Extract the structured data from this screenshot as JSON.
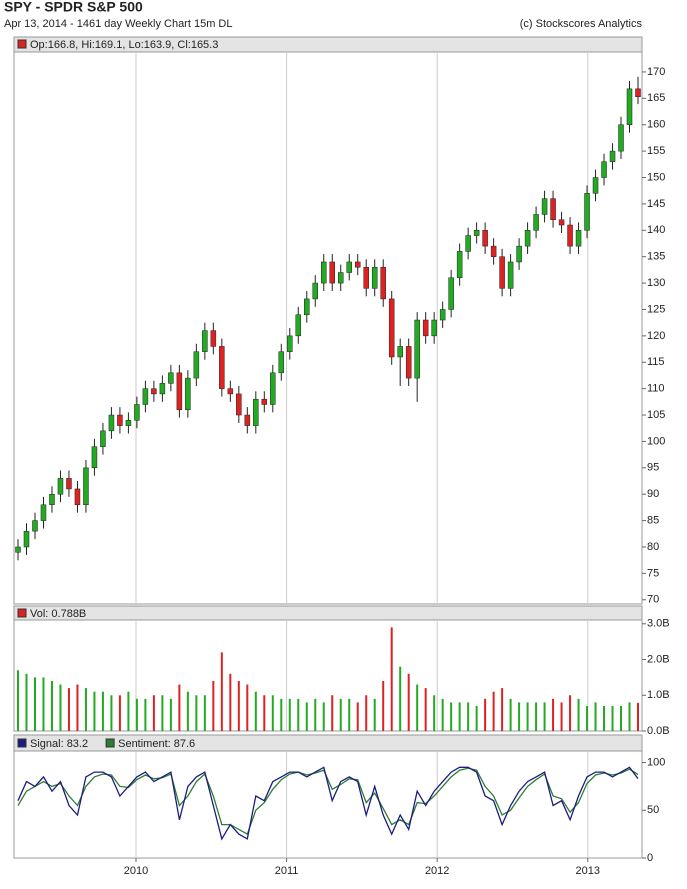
{
  "header": {
    "title": "SPY - SPDR S&P 500",
    "subtitle": "Apr 13, 2014 - 1461 day  Weekly Chart 15m DL",
    "credit": "(c) Stockscores Analytics"
  },
  "chart_data": [
    {
      "type": "candlestick",
      "label": "Op:166.8, Hi:169.1, Lo:163.9, Cl:165.3",
      "label_color": "#dd2222",
      "up_color": "#22aa22",
      "down_color": "#dd2222",
      "open": [
        79,
        80,
        83,
        85,
        88,
        90,
        93,
        91,
        88,
        95,
        99,
        102,
        105,
        103,
        104,
        107,
        110,
        109,
        111,
        113,
        106,
        112,
        117,
        121,
        118,
        110,
        109,
        105,
        103,
        108,
        107,
        113,
        117,
        120,
        124,
        127,
        130,
        134,
        130,
        132,
        134,
        133,
        129,
        133,
        127,
        116,
        118,
        112,
        123,
        120,
        123,
        125,
        131,
        136,
        139,
        140,
        137,
        135,
        129,
        134,
        137,
        140,
        143,
        146,
        142,
        141,
        137,
        140,
        147,
        150,
        153,
        155,
        160,
        166.8
      ],
      "high": [
        81.5,
        84.5,
        86.5,
        89.5,
        91.5,
        94.5,
        94.5,
        92.5,
        96.5,
        100.5,
        103.5,
        106.5,
        106.5,
        105.5,
        108.5,
        111.5,
        111.5,
        112.5,
        114.5,
        114.5,
        113.5,
        118.5,
        122.5,
        122.5,
        119.5,
        111.5,
        110.5,
        106.5,
        109.5,
        109.5,
        114.5,
        118.5,
        121.5,
        125.5,
        128.5,
        131.5,
        135.5,
        135.5,
        133.5,
        135.5,
        135.5,
        134.5,
        134.5,
        134.5,
        128.5,
        119.5,
        119.5,
        124.5,
        124.5,
        124.5,
        126.5,
        132.5,
        137.5,
        140.5,
        141.5,
        141.5,
        138.5,
        136.5,
        135.5,
        138.5,
        141.5,
        144.5,
        147.5,
        147.5,
        143.5,
        142.5,
        141.5,
        148.5,
        151.5,
        154.5,
        156.5,
        161.5,
        168.3,
        169.1
      ],
      "low": [
        77.5,
        78.5,
        81.5,
        83.5,
        86.5,
        88.5,
        89.5,
        86.5,
        86.5,
        93.5,
        97.5,
        100.5,
        101.5,
        101.5,
        102.5,
        105.5,
        107.5,
        107.5,
        109.5,
        104.5,
        104.5,
        110.5,
        115.5,
        116.5,
        108.5,
        107.5,
        103.5,
        101.5,
        101.5,
        105.5,
        105.5,
        111.5,
        115.5,
        118.5,
        122.5,
        125.5,
        128.5,
        128.5,
        128.5,
        130.5,
        131.5,
        127.5,
        127.5,
        125.5,
        114.5,
        110.5,
        110.5,
        107.5,
        118.5,
        118.5,
        121.5,
        123.5,
        129.5,
        134.5,
        137.5,
        135.5,
        133.5,
        127.5,
        127.5,
        132.5,
        135.5,
        138.5,
        141.5,
        140.5,
        139.5,
        135.5,
        135.5,
        138.5,
        145.5,
        148.5,
        151.5,
        153.5,
        158.5,
        163.9
      ],
      "close": [
        80,
        83,
        85,
        88,
        90,
        93,
        91,
        88,
        95,
        99,
        102,
        105,
        103,
        104,
        107,
        110,
        109,
        111,
        113,
        106,
        112,
        117,
        121,
        118,
        110,
        109,
        105,
        103,
        108,
        107,
        113,
        117,
        120,
        124,
        127,
        130,
        134,
        130,
        132,
        134,
        133,
        129,
        133,
        127,
        116,
        118,
        112,
        123,
        120,
        123,
        125,
        131,
        136,
        139,
        140,
        137,
        135,
        129,
        134,
        137,
        140,
        143,
        146,
        142,
        141,
        137,
        140,
        147,
        150,
        153,
        155,
        160,
        166.8,
        165.3
      ],
      "ylim": [
        69.2,
        173.4
      ],
      "yticks": [
        70,
        75,
        80,
        85,
        90,
        95,
        100,
        105,
        110,
        115,
        120,
        125,
        130,
        135,
        140,
        145,
        150,
        155,
        160,
        165,
        170
      ]
    },
    {
      "type": "bar",
      "label": "Vol: 0.788B",
      "label_color": "#dd2222",
      "values": [
        1.7,
        1.6,
        1.5,
        1.5,
        1.4,
        1.3,
        1.2,
        1.3,
        1.2,
        1.1,
        1.1,
        1.0,
        1.0,
        1.1,
        0.9,
        0.9,
        1.0,
        1.0,
        0.9,
        1.3,
        1.1,
        1.0,
        1.0,
        1.4,
        2.2,
        1.6,
        1.4,
        1.3,
        1.1,
        1.0,
        1.0,
        0.9,
        0.9,
        0.9,
        0.8,
        0.9,
        0.8,
        1.0,
        0.9,
        0.9,
        0.8,
        1.0,
        0.9,
        1.4,
        2.9,
        1.8,
        1.6,
        1.3,
        1.2,
        1.0,
        0.9,
        0.8,
        0.8,
        0.8,
        0.7,
        0.9,
        1.1,
        1.2,
        0.9,
        0.8,
        0.8,
        0.8,
        0.8,
        0.9,
        0.8,
        1.0,
        0.9,
        0.7,
        0.8,
        0.7,
        0.7,
        0.7,
        0.8,
        0.788
      ],
      "ylim": [
        0,
        3.05
      ],
      "yticks": [
        {
          "value": 0,
          "label": "0.0B"
        },
        {
          "value": 1,
          "label": "1.0B"
        },
        {
          "value": 2,
          "label": "2.0B"
        },
        {
          "value": 3,
          "label": "3.0B"
        }
      ]
    },
    {
      "type": "line",
      "series": [
        {
          "name": "Signal: 83.2",
          "color": "#1c1c80",
          "values": [
            60,
            80,
            75,
            85,
            70,
            80,
            55,
            45,
            85,
            90,
            90,
            85,
            65,
            75,
            85,
            90,
            80,
            85,
            90,
            40,
            75,
            85,
            90,
            55,
            20,
            35,
            25,
            20,
            65,
            60,
            80,
            85,
            90,
            90,
            85,
            90,
            95,
            60,
            80,
            85,
            80,
            45,
            75,
            45,
            25,
            45,
            30,
            70,
            55,
            70,
            80,
            90,
            95,
            95,
            90,
            65,
            60,
            35,
            55,
            70,
            80,
            85,
            90,
            55,
            60,
            40,
            65,
            85,
            90,
            90,
            85,
            90,
            95,
            83.2
          ]
        },
        {
          "name": "Sentiment: 87.6",
          "color": "#2e7d32",
          "values": [
            55,
            70,
            75,
            80,
            75,
            78,
            65,
            55,
            75,
            85,
            88,
            87,
            75,
            74,
            82,
            87,
            83,
            84,
            88,
            55,
            65,
            80,
            88,
            65,
            35,
            35,
            30,
            25,
            50,
            58,
            72,
            82,
            88,
            90,
            87,
            89,
            92,
            72,
            77,
            83,
            82,
            58,
            68,
            52,
            35,
            40,
            35,
            58,
            57,
            65,
            75,
            85,
            92,
            94,
            92,
            75,
            65,
            45,
            50,
            63,
            75,
            82,
            88,
            65,
            62,
            48,
            58,
            78,
            87,
            89,
            87,
            89,
            93,
            87.6
          ]
        }
      ],
      "ylim": [
        0,
        110
      ],
      "yticks": [
        0,
        50,
        100
      ],
      "xlim": [
        2009.19,
        2013.36
      ],
      "xticks": [
        2010,
        2011,
        2012,
        2013
      ]
    }
  ]
}
